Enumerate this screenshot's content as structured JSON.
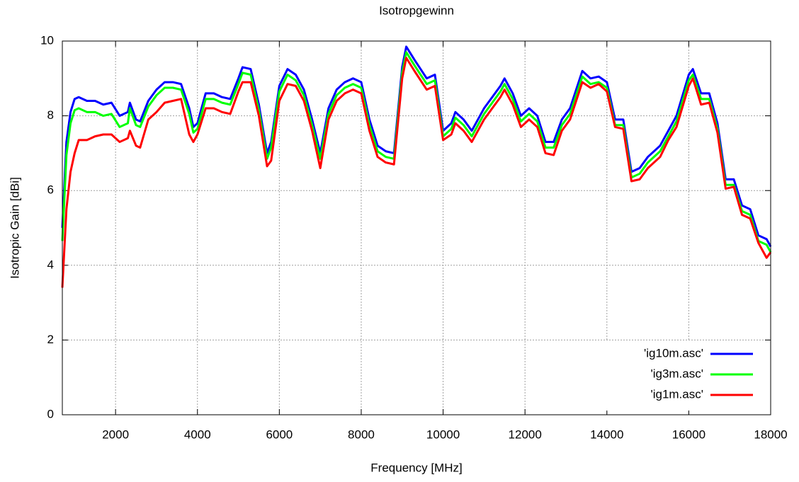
{
  "chart_data": {
    "type": "line",
    "title": "Isotropgewinn",
    "x_label": "Frequency [MHz]",
    "y_label": "Isotropic Gain [dBi]",
    "x": [
      700,
      800,
      900,
      1000,
      1100,
      1300,
      1500,
      1700,
      1900,
      2100,
      2300,
      2350,
      2500,
      2600,
      2800,
      3000,
      3200,
      3400,
      3600,
      3800,
      3900,
      4000,
      4200,
      4400,
      4600,
      4800,
      5000,
      5100,
      5300,
      5500,
      5700,
      5800,
      6000,
      6200,
      6400,
      6600,
      6800,
      7000,
      7200,
      7400,
      7600,
      7800,
      8000,
      8200,
      8400,
      8600,
      8800,
      9000,
      9100,
      9300,
      9600,
      9800,
      10000,
      10200,
      10300,
      10500,
      10700,
      11000,
      11200,
      11400,
      11500,
      11700,
      11900,
      12100,
      12300,
      12500,
      12700,
      12900,
      13100,
      13400,
      13600,
      13800,
      14000,
      14200,
      14400,
      14600,
      14800,
      15000,
      15300,
      15500,
      15700,
      16000,
      16100,
      16300,
      16500,
      16700,
      16900,
      17100,
      17300,
      17500,
      17700,
      17900,
      18000
    ],
    "series": [
      {
        "name": "'ig10m.asc'",
        "color": "#0000ff",
        "values": [
          5.0,
          7.3,
          8.1,
          8.45,
          8.5,
          8.4,
          8.4,
          8.3,
          8.35,
          8.0,
          8.1,
          8.35,
          7.9,
          7.85,
          8.4,
          8.7,
          8.9,
          8.9,
          8.85,
          8.2,
          7.7,
          7.8,
          8.6,
          8.6,
          8.5,
          8.45,
          9.0,
          9.3,
          9.25,
          8.3,
          7.0,
          7.3,
          8.8,
          9.25,
          9.1,
          8.7,
          7.9,
          7.0,
          8.2,
          8.7,
          8.9,
          9.0,
          8.9,
          7.9,
          7.2,
          7.05,
          7.0,
          9.3,
          9.85,
          9.5,
          9.0,
          9.1,
          7.6,
          7.8,
          8.1,
          7.9,
          7.6,
          8.2,
          8.5,
          8.8,
          9.0,
          8.6,
          8.0,
          8.2,
          8.0,
          7.3,
          7.3,
          7.9,
          8.2,
          9.2,
          9.0,
          9.05,
          8.9,
          7.9,
          7.9,
          6.5,
          6.6,
          6.9,
          7.2,
          7.6,
          8.0,
          9.1,
          9.25,
          8.6,
          8.6,
          7.8,
          6.3,
          6.3,
          5.6,
          5.5,
          4.8,
          4.7,
          4.5
        ]
      },
      {
        "name": "'ig3m.asc'",
        "color": "#00ff00",
        "values": [
          4.65,
          6.95,
          7.8,
          8.15,
          8.2,
          8.1,
          8.1,
          8.0,
          8.05,
          7.7,
          7.8,
          8.2,
          7.75,
          7.7,
          8.25,
          8.55,
          8.75,
          8.75,
          8.7,
          8.05,
          7.55,
          7.65,
          8.45,
          8.45,
          8.35,
          8.3,
          8.85,
          9.15,
          9.1,
          8.15,
          6.85,
          7.15,
          8.65,
          9.1,
          8.95,
          8.55,
          7.75,
          6.85,
          8.05,
          8.55,
          8.75,
          8.85,
          8.75,
          7.75,
          7.05,
          6.9,
          6.85,
          9.15,
          9.7,
          9.35,
          8.85,
          8.95,
          7.45,
          7.65,
          7.95,
          7.75,
          7.45,
          8.05,
          8.35,
          8.65,
          8.85,
          8.45,
          7.85,
          8.05,
          7.85,
          7.15,
          7.15,
          7.75,
          8.05,
          9.05,
          8.85,
          8.9,
          8.75,
          7.75,
          7.75,
          6.35,
          6.45,
          6.75,
          7.05,
          7.45,
          7.85,
          8.95,
          9.1,
          8.45,
          8.45,
          7.65,
          6.15,
          6.15,
          5.45,
          5.35,
          4.65,
          4.55,
          4.35
        ]
      },
      {
        "name": "'ig1m.asc'",
        "color": "#ff0000",
        "values": [
          3.4,
          5.5,
          6.5,
          7.0,
          7.35,
          7.35,
          7.45,
          7.5,
          7.5,
          7.3,
          7.4,
          7.6,
          7.2,
          7.15,
          7.9,
          8.1,
          8.35,
          8.4,
          8.45,
          7.5,
          7.3,
          7.5,
          8.2,
          8.2,
          8.1,
          8.05,
          8.65,
          8.9,
          8.9,
          8.0,
          6.65,
          6.8,
          8.4,
          8.85,
          8.8,
          8.4,
          7.6,
          6.6,
          7.9,
          8.4,
          8.6,
          8.7,
          8.6,
          7.6,
          6.9,
          6.75,
          6.7,
          9.0,
          9.55,
          9.2,
          8.7,
          8.8,
          7.35,
          7.5,
          7.8,
          7.6,
          7.3,
          7.9,
          8.2,
          8.5,
          8.7,
          8.3,
          7.7,
          7.9,
          7.7,
          7.0,
          6.95,
          7.6,
          7.9,
          8.9,
          8.75,
          8.85,
          8.65,
          7.7,
          7.65,
          6.25,
          6.3,
          6.6,
          6.9,
          7.35,
          7.7,
          8.8,
          9.0,
          8.3,
          8.35,
          7.55,
          6.05,
          6.1,
          5.35,
          5.25,
          4.6,
          4.2,
          4.35
        ]
      }
    ],
    "xlim": [
      700,
      18000
    ],
    "xticks": [
      2000,
      4000,
      6000,
      8000,
      10000,
      12000,
      14000,
      16000,
      18000
    ],
    "ylim": [
      0,
      10
    ],
    "yticks": [
      0,
      2,
      4,
      6,
      8,
      10
    ],
    "grid": true,
    "legend": "lower right"
  }
}
